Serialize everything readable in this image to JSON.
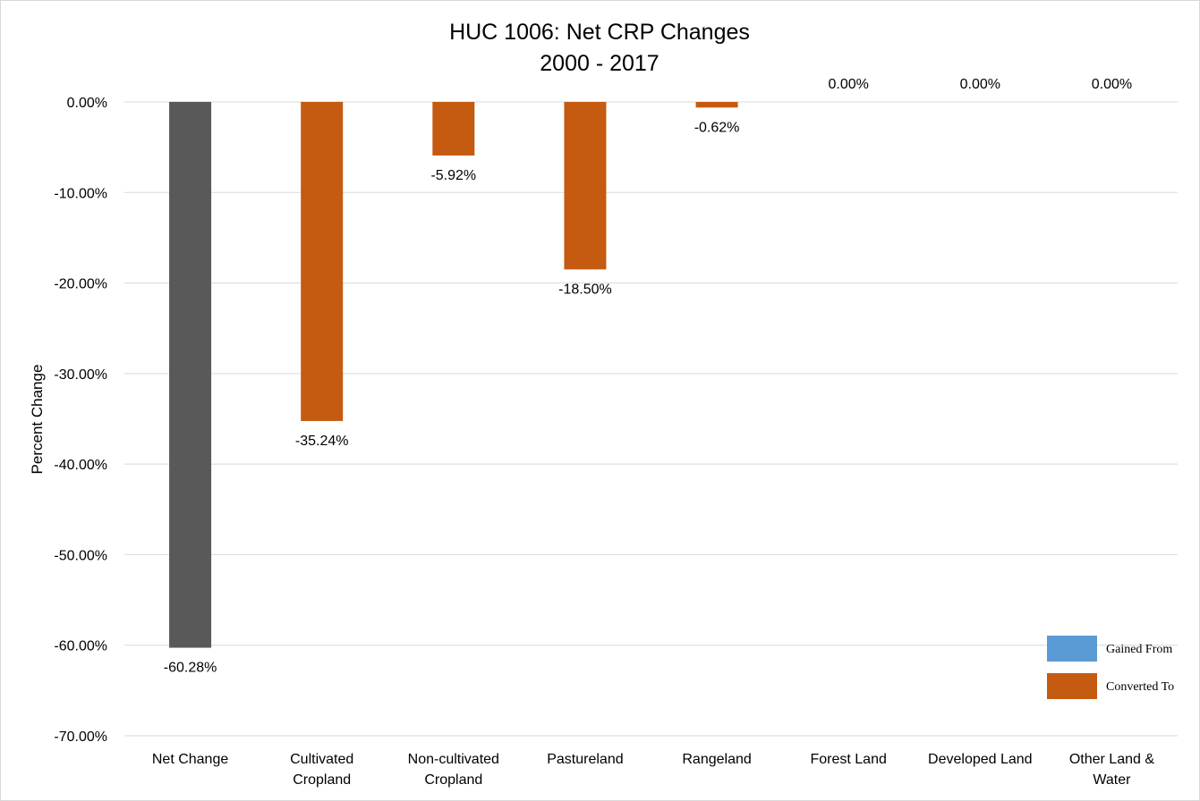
{
  "chart_data": {
    "type": "bar",
    "title": "HUC 1006: Net CRP Changes",
    "subtitle": "2000 - 2017",
    "xlabel": "",
    "ylabel": "Percent Change",
    "ylim": [
      -70,
      0
    ],
    "yticks": [
      0,
      -10,
      -20,
      -30,
      -40,
      -50,
      -60,
      -70
    ],
    "ytick_labels": [
      "0.00%",
      "-10.00%",
      "-20.00%",
      "-30.00%",
      "-40.00%",
      "-50.00%",
      "-60.00%",
      "-70.00%"
    ],
    "grid": true,
    "categories": [
      [
        "Net Change"
      ],
      [
        "Cultivated",
        "Cropland"
      ],
      [
        "Non-cultivated",
        "Cropland"
      ],
      [
        "Pastureland"
      ],
      [
        "Rangeland"
      ],
      [
        "Forest Land"
      ],
      [
        "Developed Land"
      ],
      [
        "Other Land &",
        "Water"
      ]
    ],
    "values": [
      -60.28,
      -35.24,
      -5.92,
      -18.5,
      -0.62,
      0,
      0,
      0
    ],
    "value_labels": [
      "-60.28%",
      "-35.24%",
      "-5.92%",
      "-18.50%",
      "-0.62%",
      "0.00%",
      "0.00%",
      "0.00%"
    ],
    "bar_colors": [
      "#595959",
      "#c55a11",
      "#c55a11",
      "#c55a11",
      "#c55a11",
      "#c55a11",
      "#c55a11",
      "#c55a11"
    ],
    "legend_position": "bottom-right",
    "legend": [
      {
        "name": "Gained From",
        "color": "#5b9bd5"
      },
      {
        "name": "Converted To",
        "color": "#c55a11"
      }
    ]
  }
}
